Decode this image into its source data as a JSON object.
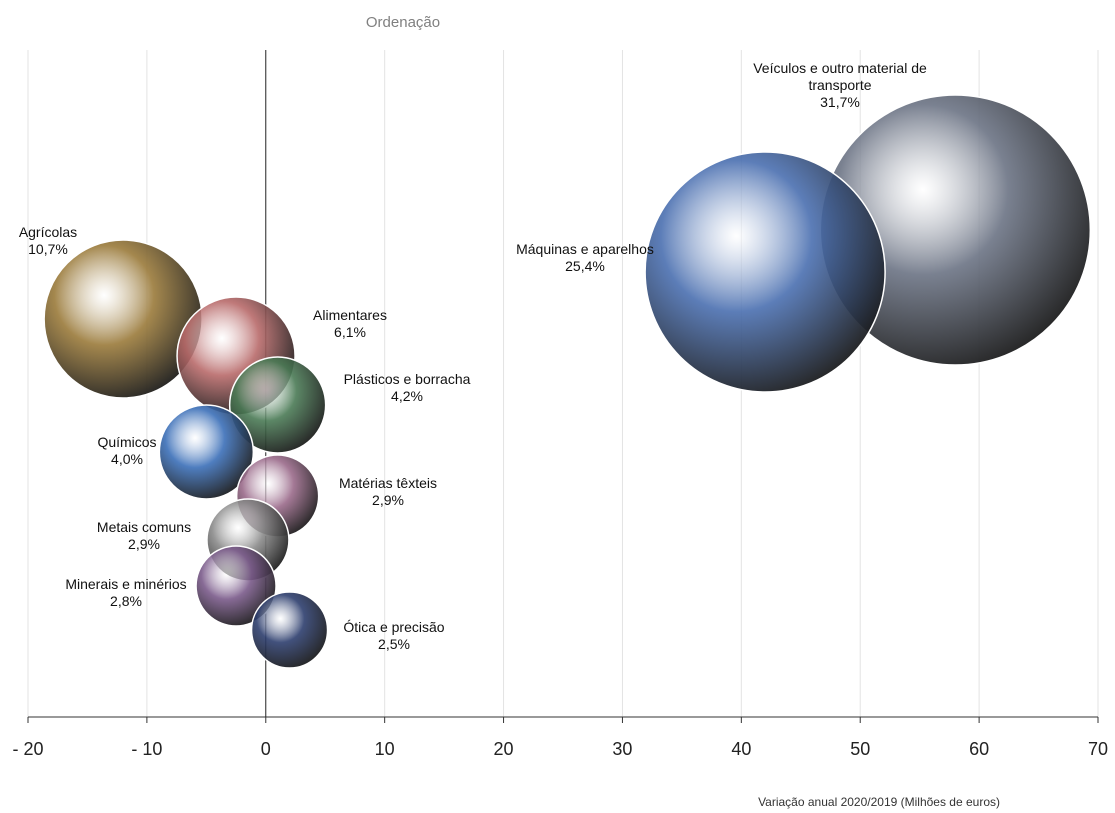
{
  "chart_data": {
    "type": "bubble",
    "title": "Ordenação",
    "xlabel": "Variação anual 2020/2019 (Milhões de euros)",
    "ylabel": "",
    "xlim": [
      -20,
      70
    ],
    "xticks": [
      -20,
      -10,
      0,
      10,
      20,
      30,
      40,
      50,
      60,
      70
    ],
    "xtick_labels": [
      "- 20",
      "- 10",
      "0",
      "10",
      "20",
      "30",
      "40",
      "50",
      "60",
      "70"
    ],
    "grid": true,
    "legend": "none",
    "series": [
      {
        "name": "Veículos e outro material de transporte",
        "label_lines": [
          "Veículos e outro material de",
          "transporte"
        ],
        "share": "31,7%",
        "x": 58,
        "size": 31.7,
        "color": "#6b7384"
      },
      {
        "name": "Máquinas e aparelhos",
        "label_lines": [
          "Máquinas e aparelhos"
        ],
        "share": "25,4%",
        "x": 42,
        "size": 25.4,
        "color": "#4a6fb0"
      },
      {
        "name": "Agrícolas",
        "label_lines": [
          "Agrícolas"
        ],
        "share": "10,7%",
        "x": -12,
        "size": 10.7,
        "color": "#9a7a3a"
      },
      {
        "name": "Alimentares",
        "label_lines": [
          "Alimentares"
        ],
        "share": "6,1%",
        "x": -2.5,
        "size": 6.1,
        "color": "#b86a6a"
      },
      {
        "name": "Plásticos e borracha",
        "label_lines": [
          "Plásticos e borracha"
        ],
        "share": "4,2%",
        "x": 1,
        "size": 4.2,
        "color": "#4a7a55"
      },
      {
        "name": "Químicos",
        "label_lines": [
          "Químicos"
        ],
        "share": "4,0%",
        "x": -5,
        "size": 4.0,
        "color": "#3b6fb8"
      },
      {
        "name": "Matérias têxteis",
        "label_lines": [
          "Matérias têxteis"
        ],
        "share": "2,9%",
        "x": 1,
        "size": 2.9,
        "color": "#9a6a8a"
      },
      {
        "name": "Metais comuns",
        "label_lines": [
          "Metais comuns"
        ],
        "share": "2,9%",
        "x": -1.5,
        "size": 2.9,
        "color": "#8a8a8a"
      },
      {
        "name": "Minerais e minérios",
        "label_lines": [
          "Minerais e minérios"
        ],
        "share": "2,8%",
        "x": -2.5,
        "size": 2.8,
        "color": "#7a5a8a"
      },
      {
        "name": "Ótica e precisão",
        "label_lines": [
          "Ótica e precisão"
        ],
        "share": "2,5%",
        "x": 2,
        "size": 2.5,
        "color": "#2d3e6e"
      }
    ]
  }
}
